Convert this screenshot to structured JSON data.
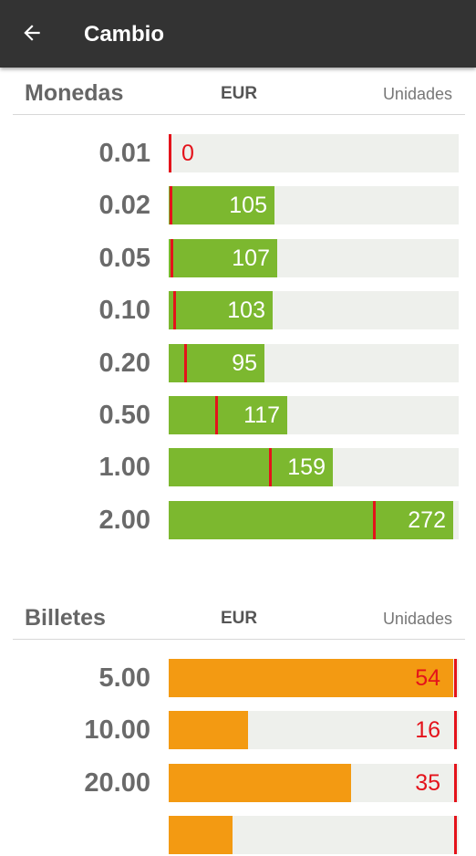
{
  "header": {
    "title": "Cambio",
    "back_icon": "arrow-back-icon"
  },
  "colors": {
    "coin_fill": "#7cb82f",
    "bill_fill": "#f39a12",
    "marker": "#e4131b",
    "track": "#eef0ec"
  },
  "coins": {
    "title": "Monedas",
    "currency": "EUR",
    "units_label": "Unidades",
    "items": [
      {
        "denomination": "0.01",
        "count": "0",
        "fill_pct": 0,
        "marker_pct": 0,
        "low": true
      },
      {
        "denomination": "0.02",
        "count": "105",
        "fill_pct": 36.5,
        "marker_pct": 0.3,
        "low": false
      },
      {
        "denomination": "0.05",
        "count": "107",
        "fill_pct": 37.5,
        "marker_pct": 0.6,
        "low": false
      },
      {
        "denomination": "0.10",
        "count": "103",
        "fill_pct": 36,
        "marker_pct": 1.6,
        "low": false
      },
      {
        "denomination": "0.20",
        "count": "95",
        "fill_pct": 33,
        "marker_pct": 5.3,
        "low": false
      },
      {
        "denomination": "0.50",
        "count": "117",
        "fill_pct": 41,
        "marker_pct": 16,
        "low": false
      },
      {
        "denomination": "1.00",
        "count": "159",
        "fill_pct": 56.5,
        "marker_pct": 34.5,
        "low": false
      },
      {
        "denomination": "2.00",
        "count": "272",
        "fill_pct": 98,
        "marker_pct": 70.5,
        "low": false
      }
    ]
  },
  "bills": {
    "title": "Billetes",
    "currency": "EUR",
    "units_label": "Unidades",
    "items": [
      {
        "denomination": "5.00",
        "count": "54",
        "fill_pct": 98,
        "marker_pct": 98.5,
        "low": true
      },
      {
        "denomination": "10.00",
        "count": "16",
        "fill_pct": 27.5,
        "marker_pct": 98.5,
        "low": true
      },
      {
        "denomination": "20.00",
        "count": "35",
        "fill_pct": 63,
        "marker_pct": 98.5,
        "low": true
      },
      {
        "denomination": "",
        "count": "",
        "fill_pct": 22,
        "marker_pct": 98.5,
        "low": true
      }
    ]
  }
}
